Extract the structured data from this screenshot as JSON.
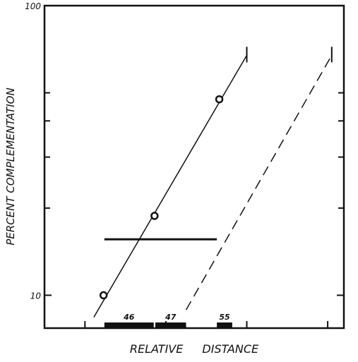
{
  "chart_data": {
    "type": "line",
    "ylabel": "PERCENT COMPLEMENTATION",
    "xlabel": "RELATIVE DISTANCE",
    "ylog": true,
    "ylim": [
      7.7,
      100
    ],
    "yticks": [
      10,
      100
    ],
    "minor_yticks": [
      20,
      30,
      40,
      50
    ],
    "xlim": [
      0.5,
      4.2
    ],
    "xticks": [
      1,
      2,
      3,
      4
    ],
    "color": "#111111",
    "points": {
      "x": [
        1.23,
        1.86,
        2.66
      ],
      "values": [
        10,
        18.8,
        47.5
      ]
    },
    "series": [
      {
        "style": "solid",
        "x": [
          1.11,
          3.0
        ],
        "values": [
          8.4,
          67.4
        ]
      },
      {
        "style": "dashed",
        "x": [
          2.25,
          4.05
        ],
        "values": [
          8.9,
          67.4
        ]
      },
      {
        "style": "bold",
        "x": [
          1.24,
          2.63
        ],
        "values": [
          15.6,
          15.6
        ]
      }
    ],
    "blocks": [
      {
        "label": "46",
        "range": [
          1.24,
          1.85
        ]
      },
      {
        "label": "47",
        "range": [
          1.87,
          2.25
        ]
      },
      {
        "label": "55",
        "range": [
          2.63,
          2.82
        ]
      }
    ]
  }
}
